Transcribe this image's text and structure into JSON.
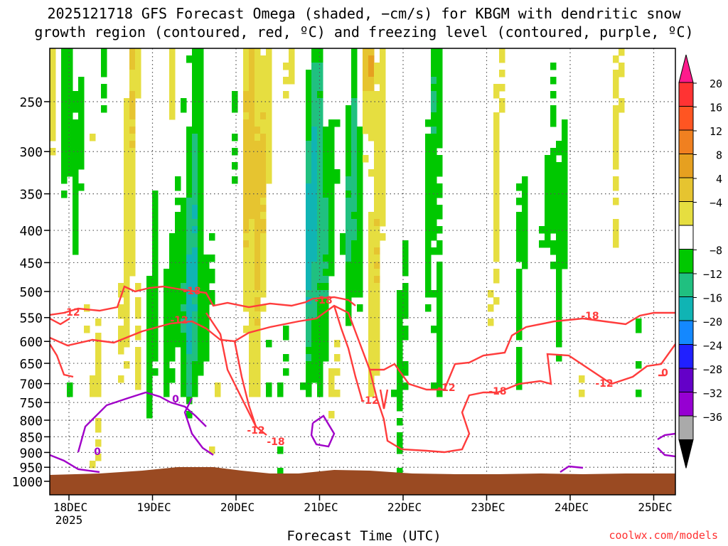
{
  "title_line1": "2025121718 GFS Forecast Omega (shaded, −cm/s) for KBGM with dendritic snow",
  "title_line2": "growth region (contoured, red, ºC) and freezing level (contoured, purple, ºC)",
  "credit": "coolwx.com/models",
  "chart_data": {
    "type": "heatmap",
    "title": "2025121718 GFS Forecast Omega (shaded, −cm/s) for KBGM with dendritic snow growth region (contoured, red, ºC) and freezing level (contoured, purple, ºC)",
    "xlabel": "Forecast Time (UTC)",
    "ylabel": "",
    "x_ticks": [
      {
        "label": "18DEC",
        "sub": "2025"
      },
      {
        "label": "19DEC",
        "sub": ""
      },
      {
        "label": "20DEC",
        "sub": ""
      },
      {
        "label": "21DEC",
        "sub": ""
      },
      {
        "label": "22DEC",
        "sub": ""
      },
      {
        "label": "23DEC",
        "sub": ""
      },
      {
        "label": "24DEC",
        "sub": ""
      },
      {
        "label": "25DEC",
        "sub": ""
      }
    ],
    "y_ticks": [
      250,
      300,
      350,
      400,
      450,
      500,
      550,
      600,
      650,
      700,
      750,
      800,
      850,
      900,
      950,
      1000
    ],
    "y_scale": "log-pressure",
    "y_range": [
      200,
      1000
    ],
    "grid": "dotted",
    "colorbar": {
      "labels": [
        "20",
        "16",
        "12",
        "8",
        "4",
        "−4",
        "−8",
        "−12",
        "−16",
        "−20",
        "−24",
        "−28",
        "−32",
        "−36"
      ],
      "colors": [
        "#ff1a8c",
        "#ff3333",
        "#ff5522",
        "#f08020",
        "#e6a020",
        "#e6c430",
        "#e6de40",
        "#ffffff",
        "#00c800",
        "#20c080",
        "#10b4b4",
        "#1488ff",
        "#2020ff",
        "#6400c8",
        "#9600d2",
        "#aaaaaa",
        "#000000"
      ]
    },
    "series": [
      {
        "name": "dendritic snow growth region",
        "color": "#ff3c3c",
        "contour_labels": [
          "-18",
          "-12",
          "-18",
          "-12",
          "-18",
          "-12",
          "-12",
          "-18",
          "-12",
          "-18",
          "-12",
          "0"
        ]
      },
      {
        "name": "freezing level",
        "color": "#a000c8",
        "contour_labels": [
          "0",
          "0"
        ]
      }
    ],
    "terrain_color": "#9a4a22"
  }
}
